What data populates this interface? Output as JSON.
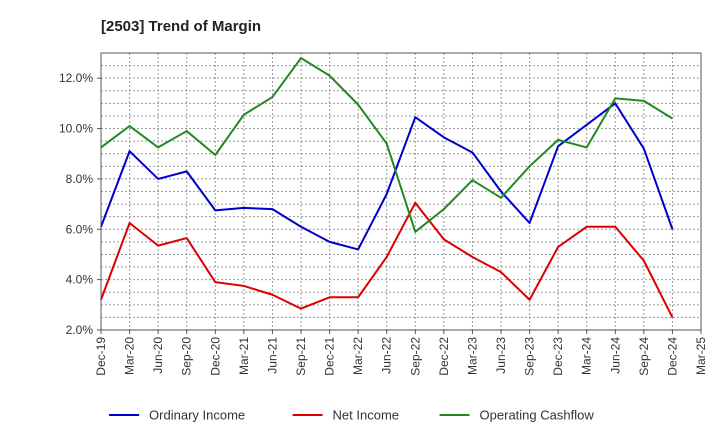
{
  "chart_data": {
    "type": "line",
    "title": "[2503]  Trend of Margin",
    "xlabel": "",
    "ylabel": "",
    "x": [
      "Dec-19",
      "Mar-20",
      "Jun-20",
      "Sep-20",
      "Dec-20",
      "Mar-21",
      "Jun-21",
      "Sep-21",
      "Dec-21",
      "Mar-22",
      "Jun-22",
      "Sep-22",
      "Dec-22",
      "Mar-23",
      "Jun-23",
      "Sep-23",
      "Dec-23",
      "Mar-24",
      "Jun-24",
      "Sep-24",
      "Dec-24",
      "Mar-25"
    ],
    "ylim": [
      2.0,
      13.0
    ],
    "yticks": [
      2.0,
      4.0,
      6.0,
      8.0,
      10.0,
      12.0
    ],
    "ytick_labels": [
      "2.0%",
      "4.0%",
      "6.0%",
      "8.0%",
      "10.0%",
      "12.0%"
    ],
    "grid": true,
    "legend_position": "bottom",
    "series": [
      {
        "name": "Ordinary Income",
        "color": "#0000cc",
        "values": [
          6.1,
          9.1,
          8.0,
          8.3,
          6.75,
          6.85,
          6.8,
          6.1,
          5.5,
          5.2,
          7.4,
          10.45,
          9.65,
          9.05,
          7.5,
          6.25,
          9.3,
          10.15,
          11.0,
          9.2,
          6.0,
          null
        ]
      },
      {
        "name": "Net Income",
        "color": "#dd0000",
        "values": [
          3.2,
          6.25,
          5.35,
          5.65,
          3.9,
          3.75,
          3.4,
          2.85,
          3.3,
          3.3,
          4.9,
          7.05,
          5.6,
          4.9,
          4.3,
          3.2,
          5.3,
          6.1,
          6.1,
          4.75,
          2.5,
          null
        ]
      },
      {
        "name": "Operating Cashflow",
        "color": "#228822",
        "values": [
          9.25,
          10.1,
          9.25,
          9.9,
          8.95,
          10.55,
          11.25,
          12.8,
          12.1,
          10.95,
          9.4,
          5.9,
          6.8,
          7.95,
          7.25,
          8.5,
          9.55,
          9.25,
          11.2,
          11.1,
          10.4,
          null
        ]
      }
    ]
  }
}
